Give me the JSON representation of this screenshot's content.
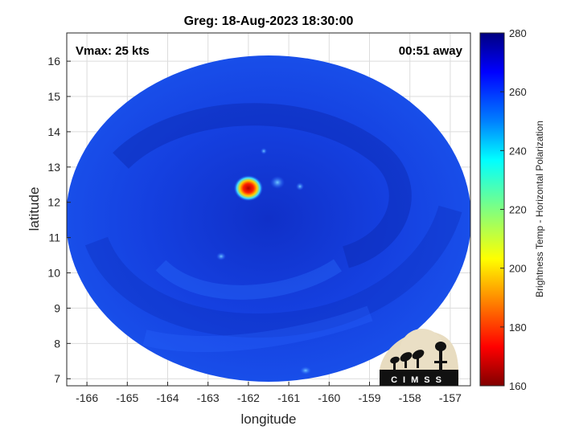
{
  "figure": {
    "title": "Greg: 18-Aug-2023 18:30:00",
    "vmax_label": "Vmax: 25 kts",
    "time_away_label": "00:51 away",
    "xlabel": "longitude",
    "ylabel": "latitude",
    "colorbar_label": "Brightness Temp - Horizontal Polarization",
    "logo_text": "CIMSS"
  },
  "axes": {
    "x_ticks": [
      -166,
      -165,
      -164,
      -163,
      -162,
      -161,
      -160,
      -159,
      -158,
      -157
    ],
    "y_ticks": [
      7,
      8,
      9,
      10,
      11,
      12,
      13,
      14,
      15,
      16
    ],
    "x_range": [
      -166.5,
      -156.5
    ],
    "y_range": [
      6.8,
      16.8
    ]
  },
  "colorbar": {
    "ticks": [
      160,
      180,
      200,
      220,
      240,
      260,
      280
    ],
    "range": [
      160,
      280
    ],
    "colormap": "jet"
  },
  "storm": {
    "center_lon": -162.0,
    "center_lat": 12.4,
    "min_brightness_temp": 165
  },
  "colors": {
    "background_field": "#1440e0",
    "eye_core": "#c00000"
  }
}
